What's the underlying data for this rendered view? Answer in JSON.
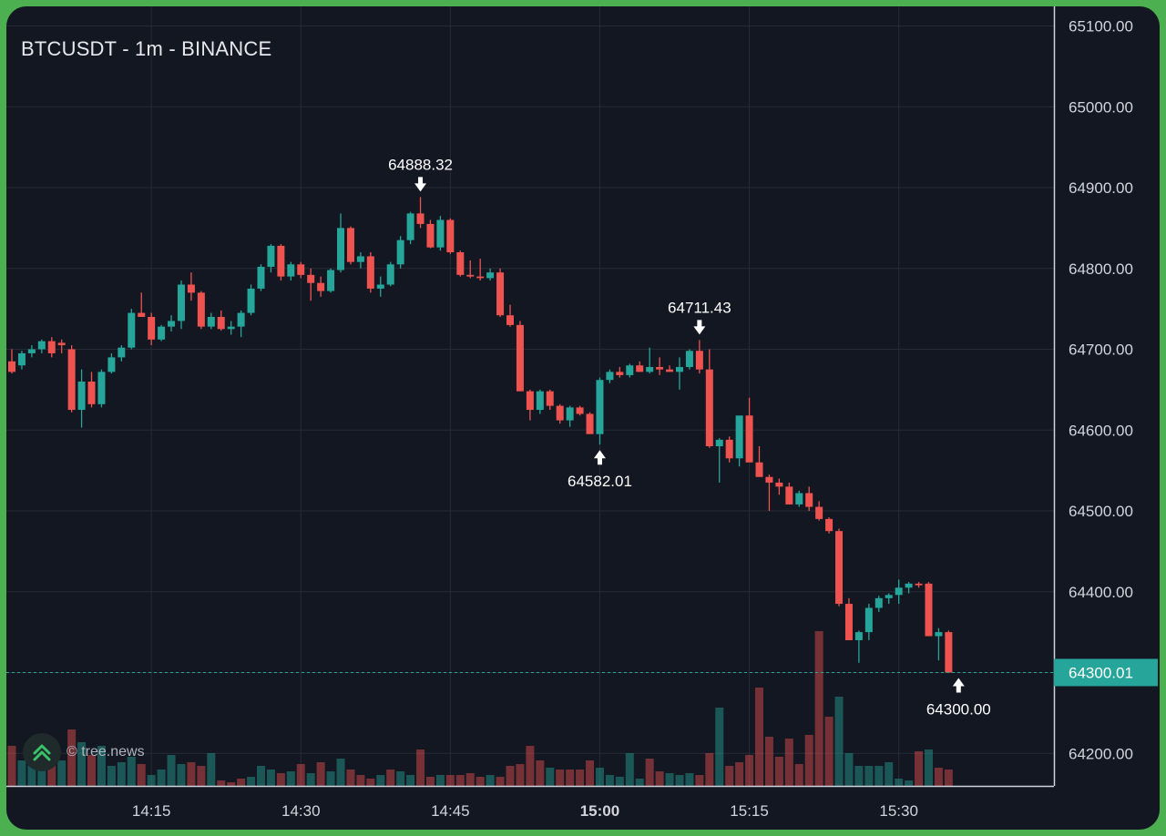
{
  "header": {
    "title": "BTCUSDT - 1m - BINANCE"
  },
  "watermark": {
    "text": "© tree.news",
    "icon": "tree-news-logo-icon"
  },
  "colors": {
    "background": "#131722",
    "up": "#26a69a",
    "down": "#ef5350",
    "grid": "#262b36",
    "price_line": "#26a69a",
    "frame": "#4caf50"
  },
  "chart_data": {
    "type": "candlestick",
    "symbol": "BTCUSDT",
    "interval": "1m",
    "exchange": "BINANCE",
    "y_range": [
      64160,
      65115
    ],
    "y_ticks": [
      "65100.00",
      "65000.00",
      "64900.00",
      "64800.00",
      "64700.00",
      "64600.00",
      "64500.00",
      "64400.00",
      "64300.00",
      "64200.00"
    ],
    "x_ticks": [
      {
        "label": "14:15",
        "index": 14,
        "bold": false
      },
      {
        "label": "14:30",
        "index": 29,
        "bold": false
      },
      {
        "label": "14:45",
        "index": 44,
        "bold": false
      },
      {
        "label": "15:00",
        "index": 59,
        "bold": true
      },
      {
        "label": "15:15",
        "index": 74,
        "bold": false
      },
      {
        "label": "15:30",
        "index": 89,
        "bold": false
      }
    ],
    "current_price": {
      "value": 64300.01,
      "label": "64300.01"
    },
    "annotations": [
      {
        "label": "64888.32",
        "index": 41,
        "price": 64888.32,
        "type": "high"
      },
      {
        "label": "64582.01",
        "index": 59,
        "price": 64582.01,
        "type": "low"
      },
      {
        "label": "64711.43",
        "index": 69,
        "price": 64711.43,
        "type": "high"
      },
      {
        "label": "64300.00",
        "index": 95,
        "price": 64300.0,
        "type": "low"
      }
    ],
    "candles": [
      [
        64685,
        64700,
        64670,
        64672
      ],
      [
        64680,
        64698,
        64675,
        64695
      ],
      [
        64695,
        64705,
        64690,
        64700
      ],
      [
        64700,
        64712,
        64695,
        64710
      ],
      [
        64710,
        64715,
        64690,
        64695
      ],
      [
        64708,
        64712,
        64695,
        64705
      ],
      [
        64700,
        64705,
        64622,
        64625
      ],
      [
        64625,
        64675,
        64603,
        64660
      ],
      [
        64660,
        64672,
        64628,
        64632
      ],
      [
        64632,
        64675,
        64628,
        64672
      ],
      [
        64672,
        64695,
        64670,
        64690
      ],
      [
        64690,
        64705,
        64685,
        64702
      ],
      [
        64702,
        64750,
        64700,
        64745
      ],
      [
        64745,
        64770,
        64740,
        64740
      ],
      [
        64740,
        64745,
        64705,
        64712
      ],
      [
        64712,
        64730,
        64710,
        64728
      ],
      [
        64728,
        64742,
        64722,
        64735
      ],
      [
        64735,
        64785,
        64725,
        64780
      ],
      [
        64780,
        64795,
        64760,
        64770
      ],
      [
        64770,
        64772,
        64725,
        64728
      ],
      [
        64728,
        64745,
        64725,
        64740
      ],
      [
        64740,
        64748,
        64723,
        64725
      ],
      [
        64725,
        64735,
        64718,
        64728
      ],
      [
        64728,
        64748,
        64715,
        64745
      ],
      [
        64745,
        64780,
        64742,
        64775
      ],
      [
        64775,
        64805,
        64772,
        64802
      ],
      [
        64802,
        64830,
        64795,
        64828
      ],
      [
        64828,
        64830,
        64785,
        64790
      ],
      [
        64790,
        64808,
        64785,
        64805
      ],
      [
        64805,
        64808,
        64788,
        64792
      ],
      [
        64792,
        64800,
        64760,
        64782
      ],
      [
        64782,
        64790,
        64765,
        64772
      ],
      [
        64772,
        64800,
        64770,
        64798
      ],
      [
        64798,
        64868,
        64795,
        64850
      ],
      [
        64850,
        64852,
        64805,
        64808
      ],
      [
        64808,
        64820,
        64800,
        64815
      ],
      [
        64815,
        64820,
        64770,
        64775
      ],
      [
        64775,
        64790,
        64765,
        64780
      ],
      [
        64780,
        64808,
        64778,
        64805
      ],
      [
        64805,
        64840,
        64800,
        64835
      ],
      [
        64835,
        64870,
        64830,
        64868
      ],
      [
        64868,
        64888.32,
        64850,
        64855
      ],
      [
        64855,
        64860,
        64825,
        64826
      ],
      [
        64826,
        64865,
        64822,
        64860
      ],
      [
        64860,
        64862,
        64818,
        64820
      ],
      [
        64820,
        64822,
        64790,
        64792
      ],
      [
        64792,
        64810,
        64788,
        64790
      ],
      [
        64790,
        64812,
        64785,
        64788
      ],
      [
        64788,
        64800,
        64785,
        64795
      ],
      [
        64795,
        64800,
        64740,
        64742
      ],
      [
        64742,
        64755,
        64728,
        64730
      ],
      [
        64730,
        64735,
        64648,
        64648
      ],
      [
        64648,
        64650,
        64612,
        64625
      ],
      [
        64625,
        64650,
        64620,
        64648
      ],
      [
        64648,
        64650,
        64625,
        64630
      ],
      [
        64630,
        64632,
        64608,
        64612
      ],
      [
        64612,
        64630,
        64604,
        64628
      ],
      [
        64628,
        64630,
        64618,
        64620
      ],
      [
        64620,
        64622,
        64598,
        64595
      ],
      [
        64595,
        64665,
        64582.01,
        64662
      ],
      [
        64662,
        64675,
        64658,
        64672
      ],
      [
        64672,
        64678,
        64665,
        64668
      ],
      [
        64668,
        64682,
        64665,
        64680
      ],
      [
        64680,
        64685,
        64672,
        64672
      ],
      [
        64672,
        64702,
        64670,
        64678
      ],
      [
        64678,
        64690,
        64668,
        64675
      ],
      [
        64675,
        64680,
        64672,
        64672
      ],
      [
        64672,
        64690,
        64650,
        64678
      ],
      [
        64678,
        64700,
        64675,
        64698
      ],
      [
        64698,
        64711.43,
        64670,
        64675
      ],
      [
        64675,
        64700,
        64578,
        64580
      ],
      [
        64580,
        64590,
        64535,
        64588
      ],
      [
        64588,
        64592,
        64560,
        64565
      ],
      [
        64565,
        64615,
        64555,
        64618
      ],
      [
        64618,
        64640,
        64560,
        64560
      ],
      [
        64560,
        64580,
        64542,
        64542
      ],
      [
        64542,
        64545,
        64500,
        64535
      ],
      [
        64535,
        64540,
        64520,
        64530
      ],
      [
        64530,
        64535,
        64508,
        64508
      ],
      [
        64508,
        64525,
        64505,
        64522
      ],
      [
        64522,
        64530,
        64500,
        64505
      ],
      [
        64505,
        64512,
        64488,
        64490
      ],
      [
        64490,
        64492,
        64472,
        64475
      ],
      [
        64475,
        64478,
        64382,
        64385
      ],
      [
        64385,
        64392,
        64340,
        64340
      ],
      [
        64340,
        64352,
        64312,
        64350
      ],
      [
        64350,
        64385,
        64340,
        64380
      ],
      [
        64380,
        64395,
        64375,
        64392
      ],
      [
        64392,
        64398,
        64385,
        64396
      ],
      [
        64396,
        64415,
        64385,
        64405
      ],
      [
        64405,
        64412,
        64398,
        64410
      ],
      [
        64410,
        64412,
        64405,
        64408
      ],
      [
        64410,
        64412,
        64345,
        64345
      ],
      [
        64345,
        64355,
        64315,
        64350
      ],
      [
        64350,
        64352,
        64300,
        64300.01
      ]
    ],
    "volumes": [
      [
        44,
        "down"
      ],
      [
        28,
        "up"
      ],
      [
        30,
        "up"
      ],
      [
        32,
        "up"
      ],
      [
        34,
        "down"
      ],
      [
        28,
        "up"
      ],
      [
        62,
        "down"
      ],
      [
        48,
        "up"
      ],
      [
        34,
        "down"
      ],
      [
        44,
        "up"
      ],
      [
        22,
        "up"
      ],
      [
        26,
        "up"
      ],
      [
        32,
        "up"
      ],
      [
        24,
        "down"
      ],
      [
        12,
        "up"
      ],
      [
        18,
        "up"
      ],
      [
        34,
        "up"
      ],
      [
        24,
        "up"
      ],
      [
        26,
        "down"
      ],
      [
        22,
        "down"
      ],
      [
        36,
        "up"
      ],
      [
        6,
        "down"
      ],
      [
        4,
        "down"
      ],
      [
        8,
        "down"
      ],
      [
        10,
        "up"
      ],
      [
        22,
        "up"
      ],
      [
        18,
        "up"
      ],
      [
        14,
        "down"
      ],
      [
        16,
        "up"
      ],
      [
        24,
        "down"
      ],
      [
        14,
        "up"
      ],
      [
        26,
        "down"
      ],
      [
        16,
        "up"
      ],
      [
        30,
        "up"
      ],
      [
        18,
        "down"
      ],
      [
        12,
        "down"
      ],
      [
        8,
        "down"
      ],
      [
        12,
        "up"
      ],
      [
        18,
        "down"
      ],
      [
        16,
        "up"
      ],
      [
        12,
        "up"
      ],
      [
        40,
        "down"
      ],
      [
        10,
        "down"
      ],
      [
        12,
        "up"
      ],
      [
        12,
        "down"
      ],
      [
        12,
        "down"
      ],
      [
        14,
        "down"
      ],
      [
        10,
        "down"
      ],
      [
        12,
        "up"
      ],
      [
        10,
        "down"
      ],
      [
        22,
        "down"
      ],
      [
        24,
        "down"
      ],
      [
        44,
        "down"
      ],
      [
        28,
        "down"
      ],
      [
        20,
        "up"
      ],
      [
        18,
        "down"
      ],
      [
        18,
        "down"
      ],
      [
        18,
        "down"
      ],
      [
        28,
        "down"
      ],
      [
        20,
        "up"
      ],
      [
        12,
        "up"
      ],
      [
        10,
        "up"
      ],
      [
        36,
        "up"
      ],
      [
        8,
        "up"
      ],
      [
        30,
        "down"
      ],
      [
        16,
        "down"
      ],
      [
        14,
        "up"
      ],
      [
        12,
        "up"
      ],
      [
        14,
        "up"
      ],
      [
        12,
        "down"
      ],
      [
        36,
        "down"
      ],
      [
        86,
        "up"
      ],
      [
        22,
        "down"
      ],
      [
        26,
        "down"
      ],
      [
        34,
        "down"
      ],
      [
        108,
        "down"
      ],
      [
        54,
        "down"
      ],
      [
        32,
        "down"
      ],
      [
        52,
        "down"
      ],
      [
        24,
        "down"
      ],
      [
        56,
        "down"
      ],
      [
        170,
        "down"
      ],
      [
        76,
        "down"
      ],
      [
        98,
        "up"
      ],
      [
        36,
        "up"
      ],
      [
        22,
        "up"
      ],
      [
        22,
        "up"
      ],
      [
        22,
        "up"
      ],
      [
        26,
        "up"
      ],
      [
        8,
        "up"
      ],
      [
        6,
        "up"
      ],
      [
        38,
        "down"
      ],
      [
        40,
        "up"
      ],
      [
        20,
        "down"
      ],
      [
        18,
        "down"
      ]
    ]
  }
}
